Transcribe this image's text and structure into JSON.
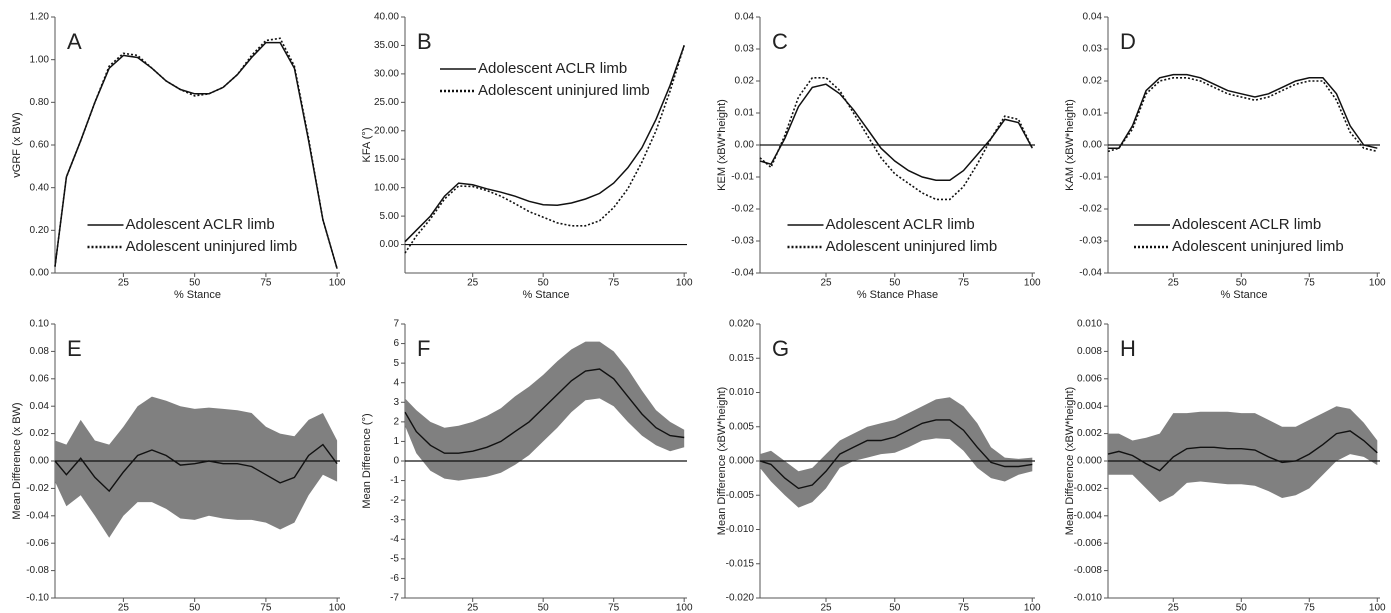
{
  "chart_data": [
    {
      "type": "line",
      "label": "A",
      "x_label": "% Stance",
      "y_label": "vGRF (x BW)",
      "x": [
        1,
        5,
        10,
        15,
        20,
        25,
        30,
        35,
        40,
        45,
        50,
        55,
        60,
        65,
        70,
        75,
        80,
        85,
        90,
        95,
        100
      ],
      "xlim": [
        1,
        101
      ],
      "xticks": [
        25,
        50,
        75,
        100
      ],
      "ylim": [
        0,
        1.2
      ],
      "yticks": [
        {
          "value": 1.2,
          "label": "1.20"
        },
        {
          "value": 1,
          "label": "1.00"
        },
        {
          "value": 0.8,
          "label": "0.80"
        },
        {
          "value": 0.6,
          "label": "0.60"
        },
        {
          "value": 0.4,
          "label": "0.40"
        },
        {
          "value": 0.2,
          "label": "0.20"
        },
        {
          "value": 0,
          "label": "0.00"
        }
      ],
      "legend": "lower center",
      "series": [
        {
          "name": "Adolescent ACLR limb",
          "color": "#111111",
          "style": "solid",
          "values": [
            0.03,
            0.45,
            0.62,
            0.8,
            0.96,
            1.02,
            1.01,
            0.96,
            0.9,
            0.86,
            0.84,
            0.84,
            0.87,
            0.93,
            1.01,
            1.08,
            1.08,
            0.96,
            0.62,
            0.25,
            0.02
          ]
        },
        {
          "name": "Adolescent uninjured limb",
          "color": "#111111",
          "style": "dotted",
          "values": [
            0.03,
            0.45,
            0.62,
            0.8,
            0.97,
            1.03,
            1.02,
            0.96,
            0.9,
            0.86,
            0.83,
            0.84,
            0.87,
            0.93,
            1.02,
            1.09,
            1.1,
            0.97,
            0.63,
            0.25,
            0.02
          ]
        }
      ]
    },
    {
      "type": "line",
      "label": "B",
      "x_label": "% Stance",
      "y_label": "KFA (°)",
      "x": [
        1,
        5,
        10,
        15,
        20,
        25,
        30,
        35,
        40,
        45,
        50,
        55,
        60,
        65,
        70,
        75,
        80,
        85,
        90,
        95,
        100
      ],
      "xlim": [
        1,
        101
      ],
      "xticks": [
        25,
        50,
        75,
        100
      ],
      "ylim": [
        -5,
        40
      ],
      "yticks": [
        {
          "value": 40,
          "label": "40.00"
        },
        {
          "value": 35,
          "label": "35.00"
        },
        {
          "value": 30,
          "label": "30.00"
        },
        {
          "value": 25,
          "label": "25.00"
        },
        {
          "value": 20,
          "label": "20.00"
        },
        {
          "value": 15,
          "label": "15.00"
        },
        {
          "value": 10,
          "label": "10.00"
        },
        {
          "value": 5,
          "label": "5.00"
        },
        {
          "value": 0,
          "label": "0.00"
        }
      ],
      "legend": "upper left",
      "zero_line": true,
      "series": [
        {
          "name": "Adolescent ACLR limb",
          "color": "#111111",
          "style": "solid",
          "values": [
            0.5,
            2.5,
            5,
            8.5,
            10.8,
            10.5,
            9.8,
            9.2,
            8.5,
            7.6,
            7.0,
            6.9,
            7.3,
            8.0,
            9.0,
            10.8,
            13.5,
            17,
            22,
            28,
            35
          ]
        },
        {
          "name": "Adolescent uninjured limb",
          "color": "#111111",
          "style": "dotted",
          "values": [
            -1.5,
            1.5,
            4.5,
            8,
            10.3,
            10.2,
            9.5,
            8.5,
            7.2,
            5.8,
            4.8,
            3.8,
            3.3,
            3.3,
            4.2,
            6.5,
            9.8,
            14.5,
            20,
            27,
            35
          ]
        }
      ]
    },
    {
      "type": "line",
      "label": "C",
      "x_label": "% Stance Phase",
      "y_label": "KEM (xBW*height)",
      "x": [
        1,
        5,
        10,
        15,
        20,
        25,
        30,
        35,
        40,
        45,
        50,
        55,
        60,
        65,
        70,
        75,
        80,
        85,
        90,
        95,
        100
      ],
      "xlim": [
        1,
        101
      ],
      "xticks": [
        25,
        50,
        75,
        100
      ],
      "ylim": [
        -0.04,
        0.04
      ],
      "yticks": [
        0.04,
        0.03,
        0.02,
        0.01,
        {
          "value": 0,
          "label": "0.00"
        },
        -0.01,
        -0.02,
        -0.03,
        -0.04
      ],
      "legend": "lower center",
      "zero_line": true,
      "series": [
        {
          "name": "Adolescent ACLR limb",
          "color": "#111111",
          "style": "solid",
          "values": [
            -0.005,
            -0.006,
            0.002,
            0.012,
            0.018,
            0.019,
            0.016,
            0.011,
            0.005,
            -0.001,
            -0.005,
            -0.008,
            -0.01,
            -0.011,
            -0.011,
            -0.008,
            -0.003,
            0.002,
            0.008,
            0.007,
            -0.001
          ]
        },
        {
          "name": "Adolescent uninjured limb",
          "color": "#111111",
          "style": "dotted",
          "values": [
            -0.004,
            -0.007,
            0.003,
            0.015,
            0.021,
            0.021,
            0.017,
            0.01,
            0.003,
            -0.004,
            -0.009,
            -0.012,
            -0.015,
            -0.017,
            -0.017,
            -0.013,
            -0.006,
            0.002,
            0.009,
            0.008,
            -0.001
          ]
        }
      ]
    },
    {
      "type": "line",
      "label": "D",
      "x_label": "% Stance",
      "y_label": "KAM (xBW*height)",
      "x": [
        1,
        5,
        10,
        15,
        20,
        25,
        30,
        35,
        40,
        45,
        50,
        55,
        60,
        65,
        70,
        75,
        80,
        85,
        90,
        95,
        100
      ],
      "xlim": [
        1,
        101
      ],
      "xticks": [
        25,
        50,
        75,
        100
      ],
      "ylim": [
        -0.04,
        0.04
      ],
      "yticks": [
        0.04,
        0.03,
        0.02,
        0.01,
        {
          "value": 0,
          "label": "0.00"
        },
        -0.01,
        -0.02,
        -0.03,
        -0.04
      ],
      "legend": "lower center",
      "zero_line": true,
      "series": [
        {
          "name": "Adolescent ACLR limb",
          "color": "#111111",
          "style": "solid",
          "values": [
            -0.001,
            -0.001,
            0.006,
            0.017,
            0.021,
            0.022,
            0.022,
            0.021,
            0.019,
            0.017,
            0.016,
            0.015,
            0.016,
            0.018,
            0.02,
            0.021,
            0.021,
            0.016,
            0.006,
            0.0,
            -0.001
          ]
        },
        {
          "name": "Adolescent uninjured limb",
          "color": "#111111",
          "style": "dotted",
          "values": [
            -0.002,
            -0.001,
            0.005,
            0.016,
            0.02,
            0.021,
            0.021,
            0.02,
            0.018,
            0.016,
            0.015,
            0.014,
            0.015,
            0.017,
            0.019,
            0.02,
            0.02,
            0.014,
            0.004,
            -0.001,
            -0.002
          ]
        }
      ]
    },
    {
      "type": "band",
      "label": "E",
      "x_label": "% Stance",
      "y_label": "Mean Difference (x BW)",
      "x": [
        1,
        5,
        10,
        15,
        20,
        25,
        30,
        35,
        40,
        45,
        50,
        55,
        60,
        65,
        70,
        75,
        80,
        85,
        90,
        95,
        100
      ],
      "xlim": [
        1,
        101
      ],
      "xticks": [
        25,
        50,
        75,
        100
      ],
      "ylim": [
        -0.1,
        0.1
      ],
      "yticks": [
        {
          "value": 0.1,
          "label": "0.10"
        },
        0.08,
        0.06,
        0.04,
        0.02,
        {
          "value": 0,
          "label": "0.00"
        },
        -0.02,
        -0.04,
        -0.06,
        -0.08,
        {
          "value": -0.1,
          "label": "-0.10"
        }
      ],
      "zero_line": true,
      "color": "#111111",
      "band_color": "#808080",
      "values": [
        0,
        -0.01,
        0.002,
        -0.012,
        -0.022,
        -0.008,
        0.004,
        0.008,
        0.004,
        -0.003,
        -0.002,
        0,
        -0.002,
        -0.002,
        -0.004,
        -0.01,
        -0.016,
        -0.012,
        0.004,
        0.012,
        -0.002
      ],
      "upper": [
        0.015,
        0.012,
        0.03,
        0.015,
        0.012,
        0.025,
        0.04,
        0.047,
        0.044,
        0.04,
        0.038,
        0.039,
        0.038,
        0.037,
        0.035,
        0.025,
        0.02,
        0.018,
        0.03,
        0.035,
        0.015
      ],
      "lower": [
        -0.015,
        -0.033,
        -0.025,
        -0.04,
        -0.056,
        -0.04,
        -0.03,
        -0.03,
        -0.035,
        -0.042,
        -0.043,
        -0.04,
        -0.042,
        -0.043,
        -0.043,
        -0.045,
        -0.05,
        -0.045,
        -0.025,
        -0.01,
        -0.015
      ]
    },
    {
      "type": "band",
      "label": "F",
      "x_label": "% Stance",
      "y_label": "Mean Difference (°)",
      "x": [
        1,
        5,
        10,
        15,
        20,
        25,
        30,
        35,
        40,
        45,
        50,
        55,
        60,
        65,
        70,
        75,
        80,
        85,
        90,
        95,
        100
      ],
      "xlim": [
        1,
        101
      ],
      "xticks": [
        25,
        50,
        75,
        100
      ],
      "ylim": [
        -7,
        7
      ],
      "yticks": [
        7,
        6,
        5,
        4,
        3,
        2,
        1,
        0,
        -1,
        -2,
        -3,
        -4,
        -5,
        -6,
        -7
      ],
      "zero_line": true,
      "color": "#111111",
      "band_color": "#808080",
      "values": [
        2.5,
        1.5,
        0.8,
        0.4,
        0.4,
        0.5,
        0.7,
        1.0,
        1.5,
        2.0,
        2.7,
        3.4,
        4.1,
        4.6,
        4.7,
        4.2,
        3.3,
        2.4,
        1.7,
        1.3,
        1.2
      ],
      "upper": [
        3.2,
        2.6,
        2.0,
        1.7,
        1.8,
        2.0,
        2.3,
        2.7,
        3.3,
        3.8,
        4.4,
        5.1,
        5.7,
        6.1,
        6.1,
        5.6,
        4.7,
        3.6,
        2.6,
        2.0,
        1.6
      ],
      "lower": [
        1.8,
        0.4,
        -0.5,
        -0.9,
        -1.0,
        -0.9,
        -0.8,
        -0.6,
        -0.2,
        0.3,
        1.0,
        1.7,
        2.5,
        3.1,
        3.2,
        2.8,
        2.0,
        1.3,
        0.8,
        0.5,
        0.7
      ]
    },
    {
      "type": "band",
      "label": "G",
      "x_label": "% Stance",
      "y_label": "Mean Difference (xBW*height)",
      "x": [
        1,
        5,
        10,
        15,
        20,
        25,
        30,
        35,
        40,
        45,
        50,
        55,
        60,
        65,
        70,
        75,
        80,
        85,
        90,
        95,
        100
      ],
      "xlim": [
        1,
        101
      ],
      "xticks": [
        25,
        50,
        75,
        100
      ],
      "ylim": [
        -0.02,
        0.02
      ],
      "yticks": [
        {
          "value": 0.02,
          "label": "0.020"
        },
        0.015,
        {
          "value": 0.01,
          "label": "0.010"
        },
        0.005,
        {
          "value": 0,
          "label": "0.000"
        },
        -0.005,
        {
          "value": -0.01,
          "label": "-0.010"
        },
        -0.015,
        {
          "value": -0.02,
          "label": "-0.020"
        }
      ],
      "zero_line": true,
      "color": "#111111",
      "band_color": "#808080",
      "values": [
        0,
        -0.0005,
        -0.0025,
        -0.004,
        -0.0035,
        -0.0015,
        0.001,
        0.002,
        0.003,
        0.003,
        0.0035,
        0.0045,
        0.0055,
        0.006,
        0.006,
        0.0045,
        0.002,
        -0.0002,
        -0.0008,
        -0.0008,
        -0.0005
      ],
      "upper": [
        0.001,
        0.0015,
        0,
        -0.0015,
        -0.001,
        0.001,
        0.003,
        0.004,
        0.005,
        0.0055,
        0.006,
        0.007,
        0.008,
        0.009,
        0.0093,
        0.008,
        0.0055,
        0.002,
        0.0005,
        0.0003,
        0.0005
      ],
      "lower": [
        -0.001,
        -0.003,
        -0.005,
        -0.0068,
        -0.006,
        -0.004,
        -0.001,
        0,
        0.0005,
        0.001,
        0.0012,
        0.002,
        0.003,
        0.0033,
        0.0032,
        0.0015,
        -0.001,
        -0.0025,
        -0.003,
        -0.002,
        -0.0015
      ]
    },
    {
      "type": "band",
      "label": "H",
      "x_label": "% Stance",
      "y_label": "Mean Difference (xBW*height)",
      "x": [
        1,
        5,
        10,
        15,
        20,
        25,
        30,
        35,
        40,
        45,
        50,
        55,
        60,
        65,
        70,
        75,
        80,
        85,
        90,
        95,
        100
      ],
      "xlim": [
        1,
        101
      ],
      "xticks": [
        25,
        50,
        75,
        100
      ],
      "ylim": [
        -0.01,
        0.01
      ],
      "yticks": [
        {
          "value": 0.01,
          "label": "0.010"
        },
        0.008,
        0.006,
        0.004,
        0.002,
        {
          "value": 0,
          "label": "0.000"
        },
        -0.002,
        -0.004,
        -0.006,
        -0.008,
        {
          "value": -0.01,
          "label": "-0.010"
        }
      ],
      "zero_line": true,
      "color": "#111111",
      "band_color": "#808080",
      "values": [
        0.0005,
        0.0007,
        0.0004,
        -0.0002,
        -0.0007,
        0.0003,
        0.0009,
        0.001,
        0.001,
        0.0009,
        0.0009,
        0.0008,
        0.0003,
        -0.0001,
        0,
        0.0005,
        0.0012,
        0.002,
        0.0022,
        0.0015,
        0.0006
      ],
      "upper": [
        0.002,
        0.002,
        0.0015,
        0.0017,
        0.002,
        0.0035,
        0.0035,
        0.0036,
        0.0036,
        0.0036,
        0.0035,
        0.0035,
        0.003,
        0.0025,
        0.0025,
        0.003,
        0.0035,
        0.004,
        0.0038,
        0.0028,
        0.0015
      ],
      "lower": [
        -0.001,
        -0.001,
        -0.001,
        -0.002,
        -0.003,
        -0.0025,
        -0.0016,
        -0.0015,
        -0.0016,
        -0.0017,
        -0.0017,
        -0.0018,
        -0.0022,
        -0.0027,
        -0.0025,
        -0.002,
        -0.001,
        0,
        0.0005,
        0.0003,
        -0.0003
      ]
    }
  ]
}
